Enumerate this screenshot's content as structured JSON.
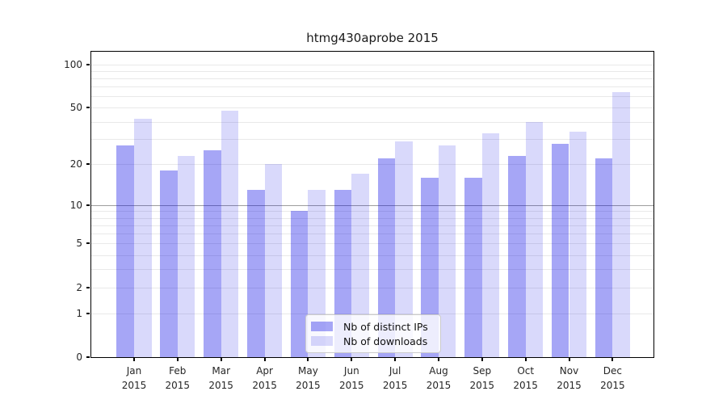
{
  "title": "htmg430aprobe 2015",
  "chart_data": {
    "type": "bar",
    "title": "htmg430aprobe 2015",
    "categories": [
      "Jan",
      "Feb",
      "Mar",
      "Apr",
      "May",
      "Jun",
      "Jul",
      "Aug",
      "Sep",
      "Oct",
      "Nov",
      "Dec"
    ],
    "x_tick_year": "2015",
    "series": [
      {
        "name": "Nb of distinct IPs",
        "color": "rgba(0,0,230,0.35)",
        "values": [
          27,
          18,
          25,
          13,
          9,
          13,
          22,
          16,
          16,
          23,
          28,
          22
        ]
      },
      {
        "name": "Nb of downloads",
        "color": "rgba(0,0,230,0.15)",
        "values": [
          42,
          23,
          48,
          20,
          13,
          17,
          29,
          27,
          33,
          40,
          34,
          64
        ]
      }
    ],
    "y_axis": {
      "scale": "log1p",
      "tick_values": [
        0,
        1,
        2,
        5,
        10,
        20,
        50,
        100
      ],
      "gridline_values": [
        1,
        2,
        3,
        4,
        5,
        6,
        7,
        8,
        9,
        10,
        20,
        30,
        40,
        50,
        60,
        70,
        80,
        90,
        100
      ],
      "major_gridline_value": 10,
      "ylim": [
        0,
        124
      ],
      "grid": true
    },
    "legend_position": "lower center"
  },
  "colors": {
    "minor_grid": "#e9e9e9",
    "major_grid": "#9e9e9e",
    "axis": "#000000",
    "text": "#262626"
  }
}
